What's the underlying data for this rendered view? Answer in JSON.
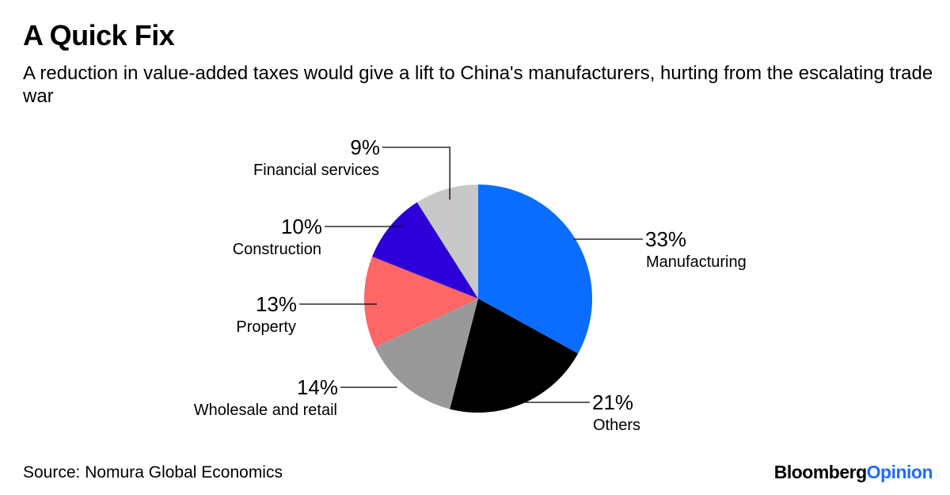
{
  "header": {
    "title": "A Quick Fix",
    "subtitle": "A reduction in value-added taxes would give a lift to China's manufacturers, hurting from the escalating trade war"
  },
  "footer": {
    "source": "Source: Nomura Global Economics",
    "brand_main": "Bloomberg",
    "brand_accent": "Opinion"
  },
  "colors": {
    "brand_accent": "#1f6bff"
  },
  "chart_data": {
    "type": "pie",
    "start_angle_deg": 0,
    "direction": "clockwise",
    "slices": [
      {
        "label": "Manufacturing",
        "value": 33,
        "value_label": "33%",
        "color": "#0a6dff"
      },
      {
        "label": "Others",
        "value": 21,
        "value_label": "21%",
        "color": "#000000"
      },
      {
        "label": "Wholesale and retail",
        "value": 14,
        "value_label": "14%",
        "color": "#999999"
      },
      {
        "label": "Property",
        "value": 13,
        "value_label": "13%",
        "color": "#ff6666"
      },
      {
        "label": "Construction",
        "value": 10,
        "value_label": "10%",
        "color": "#2b00d9"
      },
      {
        "label": "Financial services",
        "value": 9,
        "value_label": "9%",
        "color": "#c8c8c8"
      }
    ]
  }
}
